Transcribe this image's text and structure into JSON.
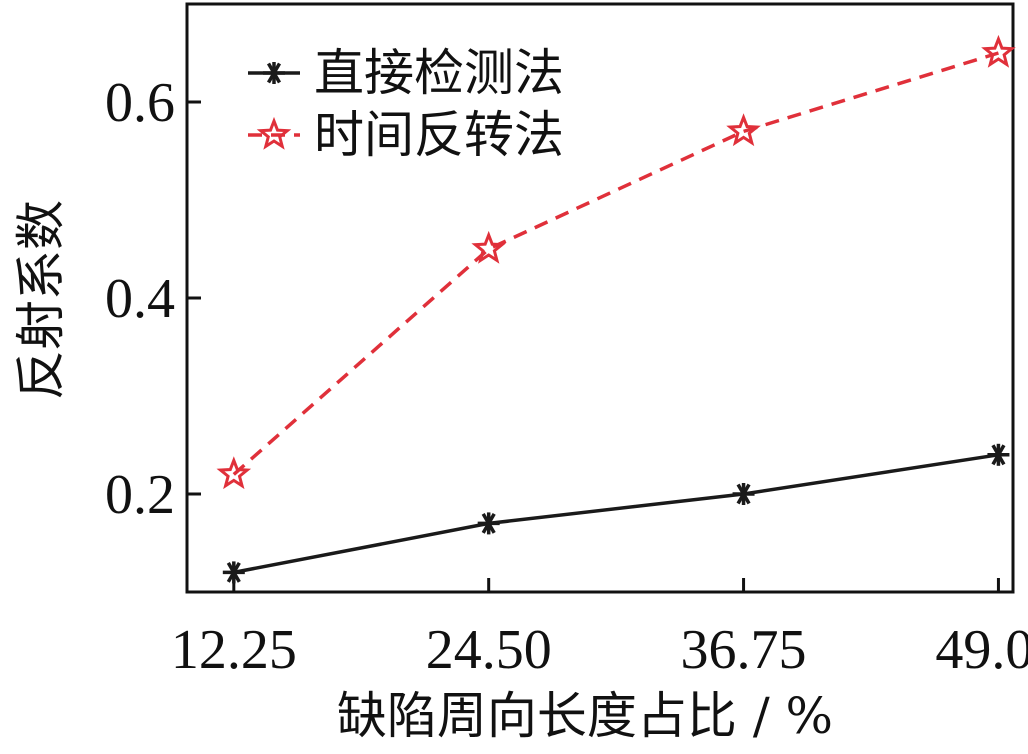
{
  "chart_data": {
    "type": "line",
    "title": "",
    "xlabel": "缺陷周向长度占比 / %",
    "ylabel": "反射系数",
    "categories": [
      "12.25",
      "24.50",
      "36.75",
      "49.00"
    ],
    "x": [
      12.25,
      24.5,
      36.75,
      49.0
    ],
    "xlim": [
      10.0,
      49.7
    ],
    "ylim": [
      0.1,
      0.7
    ],
    "yticks": [
      "0.2",
      "0.4",
      "0.6"
    ],
    "ytick_values": [
      0.2,
      0.4,
      0.6
    ],
    "grid": false,
    "legend_position": "top-left",
    "series": [
      {
        "name": "直接检测法",
        "values": [
          0.12,
          0.17,
          0.2,
          0.24
        ],
        "color": "#1a1a1a",
        "line_style": "solid",
        "marker": "asterisk"
      },
      {
        "name": "时间反转法",
        "values": [
          0.22,
          0.45,
          0.57,
          0.65
        ],
        "color": "#e0303a",
        "line_style": "dashed",
        "marker": "star"
      }
    ]
  }
}
